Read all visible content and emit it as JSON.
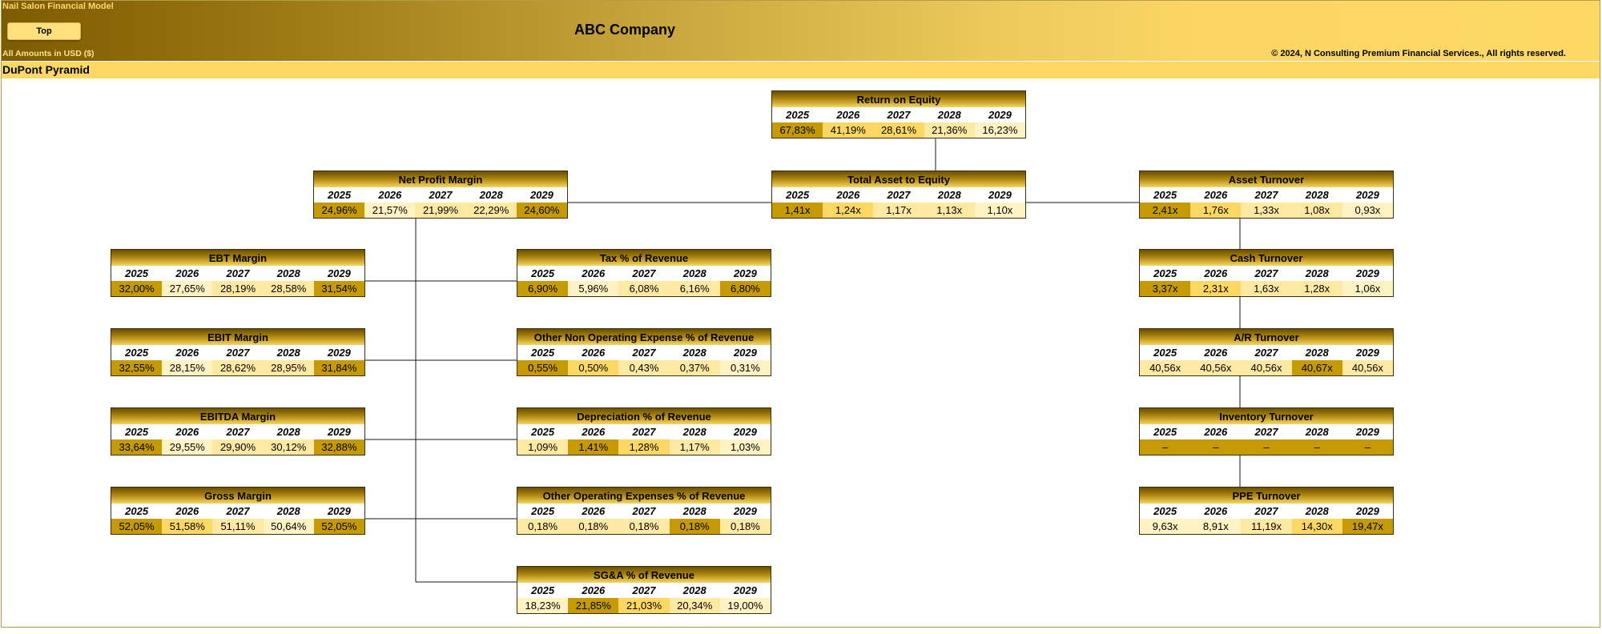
{
  "header": {
    "model_label": "Nail Salon Financial Model",
    "top_button": "Top",
    "amounts_label": "All Amounts in  USD ($)",
    "company": "ABC Company",
    "copyright": "© 2024, N Consulting Premium Financial Services., All rights reserved.",
    "section_title": "DuPont Pyramid"
  },
  "colors": {
    "dark": "#c59a05",
    "mid": "#fcd863",
    "light": "#fee9a3",
    "pale": "#fff3c4"
  },
  "boxes": [
    {
      "id": "roe",
      "title": "Return on Equity",
      "years": [
        "2025",
        "2026",
        "2027",
        "2028",
        "2029"
      ],
      "values": [
        "67,83%",
        "41,19%",
        "28,61%",
        "21,36%",
        "16,23%"
      ],
      "shades": [
        "dark",
        "mid",
        "mid",
        "light",
        "pale"
      ]
    },
    {
      "id": "npm",
      "title": "Net Profit Margin",
      "years": [
        "2025",
        "2026",
        "2027",
        "2028",
        "2029"
      ],
      "values": [
        "24,96%",
        "21,57%",
        "21,99%",
        "22,29%",
        "24,60%"
      ],
      "shades": [
        "dark",
        "pale",
        "light",
        "light",
        "dark"
      ]
    },
    {
      "id": "tae",
      "title": "Total Asset to Equity",
      "years": [
        "2025",
        "2026",
        "2027",
        "2028",
        "2029"
      ],
      "values": [
        "1,41x",
        "1,24x",
        "1,17x",
        "1,13x",
        "1,10x"
      ],
      "shades": [
        "dark",
        "mid",
        "light",
        "light",
        "pale"
      ]
    },
    {
      "id": "at",
      "title": "Asset Turnover",
      "years": [
        "2025",
        "2026",
        "2027",
        "2028",
        "2029"
      ],
      "values": [
        "2,41x",
        "1,76x",
        "1,33x",
        "1,08x",
        "0,93x"
      ],
      "shades": [
        "dark",
        "mid",
        "light",
        "light",
        "pale"
      ]
    },
    {
      "id": "ebt",
      "title": "EBT Margin",
      "years": [
        "2025",
        "2026",
        "2027",
        "2028",
        "2029"
      ],
      "values": [
        "32,00%",
        "27,65%",
        "28,19%",
        "28,58%",
        "31,54%"
      ],
      "shades": [
        "dark",
        "pale",
        "light",
        "light",
        "dark"
      ]
    },
    {
      "id": "tax",
      "title": "Tax % of Revenue",
      "years": [
        "2025",
        "2026",
        "2027",
        "2028",
        "2029"
      ],
      "values": [
        "6,90%",
        "5,96%",
        "6,08%",
        "6,16%",
        "6,80%"
      ],
      "shades": [
        "dark",
        "pale",
        "light",
        "light",
        "dark"
      ]
    },
    {
      "id": "cash",
      "title": "Cash Turnover",
      "years": [
        "2025",
        "2026",
        "2027",
        "2028",
        "2029"
      ],
      "values": [
        "3,37x",
        "2,31x",
        "1,63x",
        "1,28x",
        "1,06x"
      ],
      "shades": [
        "dark",
        "mid",
        "light",
        "light",
        "pale"
      ]
    },
    {
      "id": "ebit",
      "title": "EBIT Margin",
      "years": [
        "2025",
        "2026",
        "2027",
        "2028",
        "2029"
      ],
      "values": [
        "32,55%",
        "28,15%",
        "28,62%",
        "28,95%",
        "31,84%"
      ],
      "shades": [
        "dark",
        "pale",
        "light",
        "light",
        "dark"
      ]
    },
    {
      "id": "onoe",
      "title": "Other Non Operating Expense % of Revenue",
      "years": [
        "2025",
        "2026",
        "2027",
        "2028",
        "2029"
      ],
      "values": [
        "0,55%",
        "0,50%",
        "0,43%",
        "0,37%",
        "0,31%"
      ],
      "shades": [
        "dark",
        "mid",
        "light",
        "light",
        "pale"
      ]
    },
    {
      "id": "ar",
      "title": "A/R Turnover",
      "years": [
        "2025",
        "2026",
        "2027",
        "2028",
        "2029"
      ],
      "values": [
        "40,56x",
        "40,56x",
        "40,56x",
        "40,67x",
        "40,56x"
      ],
      "shades": [
        "light",
        "light",
        "light",
        "dark",
        "light"
      ]
    },
    {
      "id": "ebitda",
      "title": "EBITDA Margin",
      "years": [
        "2025",
        "2026",
        "2027",
        "2028",
        "2029"
      ],
      "values": [
        "33,64%",
        "29,55%",
        "29,90%",
        "30,12%",
        "32,88%"
      ],
      "shades": [
        "dark",
        "pale",
        "light",
        "light",
        "dark"
      ]
    },
    {
      "id": "dep",
      "title": "Depreciation % of Revenue",
      "years": [
        "2025",
        "2026",
        "2027",
        "2028",
        "2029"
      ],
      "values": [
        "1,09%",
        "1,41%",
        "1,28%",
        "1,17%",
        "1,03%"
      ],
      "shades": [
        "light",
        "dark",
        "mid",
        "light",
        "pale"
      ]
    },
    {
      "id": "inv",
      "title": "Inventory Turnover",
      "years": [
        "2025",
        "2026",
        "2027",
        "2028",
        "2029"
      ],
      "values": [
        "–",
        "–",
        "–",
        "–",
        "–"
      ],
      "shades": [
        "dark",
        "dark",
        "dark",
        "dark",
        "dark"
      ]
    },
    {
      "id": "gm",
      "title": "Gross Margin",
      "years": [
        "2025",
        "2026",
        "2027",
        "2028",
        "2029"
      ],
      "values": [
        "52,05%",
        "51,58%",
        "51,11%",
        "50,64%",
        "52,05%"
      ],
      "shades": [
        "dark",
        "mid",
        "light",
        "pale",
        "dark"
      ]
    },
    {
      "id": "ooe",
      "title": "Other Operating Expenses % of Revenue",
      "years": [
        "2025",
        "2026",
        "2027",
        "2028",
        "2029"
      ],
      "values": [
        "0,18%",
        "0,18%",
        "0,18%",
        "0,18%",
        "0,18%"
      ],
      "shades": [
        "light",
        "light",
        "light",
        "dark",
        "light"
      ]
    },
    {
      "id": "ppe",
      "title": "PPE Turnover",
      "years": [
        "2025",
        "2026",
        "2027",
        "2028",
        "2029"
      ],
      "values": [
        "9,63x",
        "8,91x",
        "11,19x",
        "14,30x",
        "19,47x"
      ],
      "shades": [
        "pale",
        "pale",
        "light",
        "mid",
        "dark"
      ]
    },
    {
      "id": "sga",
      "title": "SG&A % of Revenue",
      "years": [
        "2025",
        "2026",
        "2027",
        "2028",
        "2029"
      ],
      "values": [
        "18,23%",
        "21,85%",
        "21,03%",
        "20,34%",
        "19,00%"
      ],
      "shades": [
        "pale",
        "dark",
        "mid",
        "light",
        "pale"
      ]
    }
  ]
}
